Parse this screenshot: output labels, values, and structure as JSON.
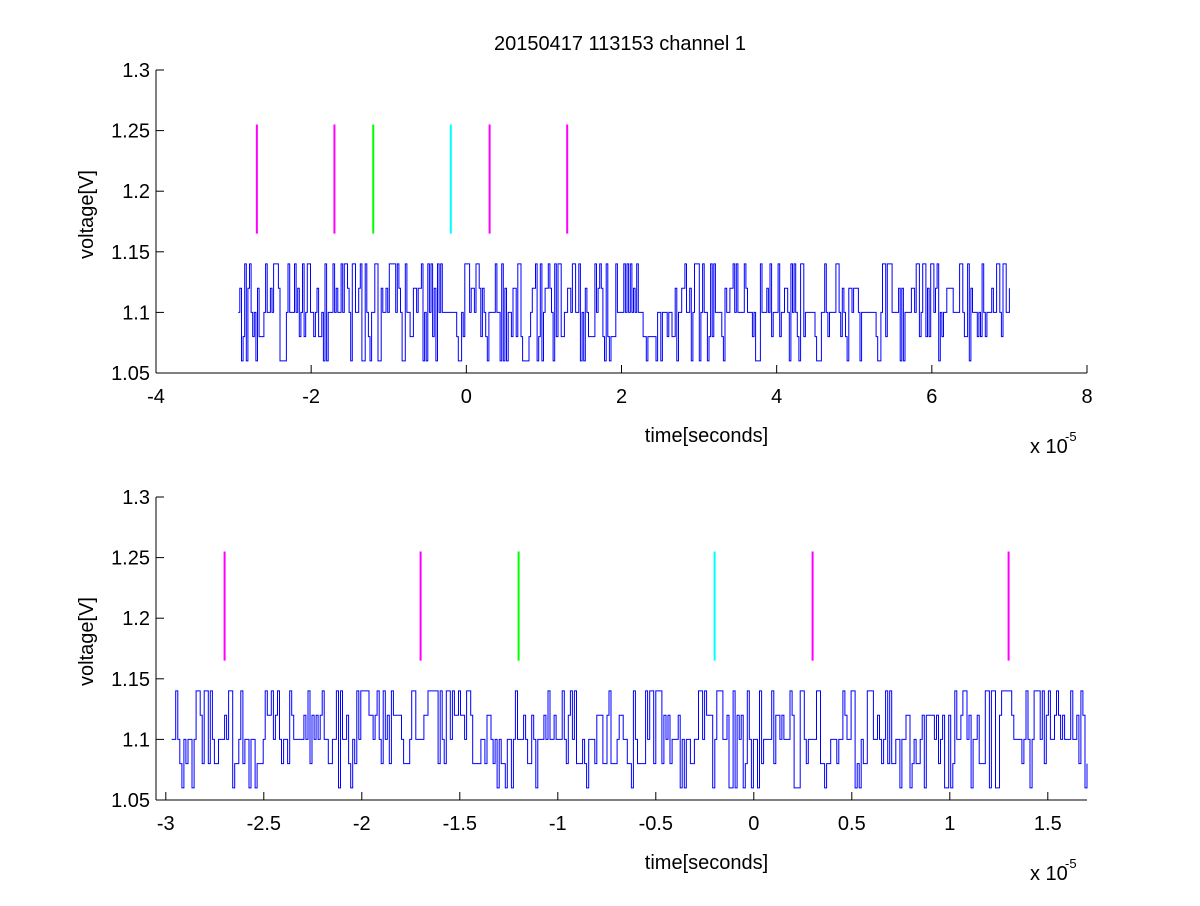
{
  "figure": {
    "title": "20150417 113153 channel 1",
    "colors": {
      "trace": "#0000ff",
      "magenta": "#ff00ff",
      "green": "#00ff00",
      "cyan": "#00ffff",
      "axis": "#000000",
      "background": "#ffffff"
    }
  },
  "chart_data": [
    {
      "type": "line",
      "title": "20150417 113153 channel 1",
      "xlabel": "time[seconds]",
      "ylabel": "voltage[V]",
      "x_multiplier_label": "x 10",
      "x_multiplier_exponent": "-5",
      "xlim": [
        -4,
        8
      ],
      "ylim": [
        1.05,
        1.3
      ],
      "xticks": [
        -4,
        -2,
        0,
        2,
        4,
        6,
        8
      ],
      "xtick_labels": [
        "-4",
        "-2",
        "0",
        "2",
        "4",
        "6",
        "8"
      ],
      "yticks": [
        1.05,
        1.1,
        1.15,
        1.2,
        1.25,
        1.3
      ],
      "ytick_labels": [
        "1.05",
        "1.1",
        "1.15",
        "1.2",
        "1.25",
        "1.3"
      ],
      "grid": false,
      "series": [
        {
          "style": "staircase",
          "color": "#0000ff",
          "x_start": -2.94,
          "x_end": 7.0,
          "levels": [
            1.06,
            1.08,
            1.1,
            1.12,
            1.14
          ],
          "baseline": 1.1,
          "samples": 480,
          "seed": 3
        }
      ],
      "markers": [
        {
          "x": -2.7,
          "y0": 1.165,
          "y1": 1.255,
          "color": "#ff00ff"
        },
        {
          "x": -1.7,
          "y0": 1.165,
          "y1": 1.255,
          "color": "#ff00ff"
        },
        {
          "x": -1.2,
          "y0": 1.165,
          "y1": 1.255,
          "color": "#00ff00"
        },
        {
          "x": -0.2,
          "y0": 1.165,
          "y1": 1.255,
          "color": "#00ffff"
        },
        {
          "x": 0.3,
          "y0": 1.165,
          "y1": 1.255,
          "color": "#ff00ff"
        },
        {
          "x": 1.3,
          "y0": 1.165,
          "y1": 1.255,
          "color": "#ff00ff"
        }
      ]
    },
    {
      "type": "line",
      "title": "",
      "xlabel": "time[seconds]",
      "ylabel": "voltage[V]",
      "x_multiplier_label": "x 10",
      "x_multiplier_exponent": "-5",
      "xlim": [
        -3.05,
        1.7
      ],
      "ylim": [
        1.05,
        1.3
      ],
      "xticks": [
        -3,
        -2.5,
        -2,
        -1.5,
        -1,
        -0.5,
        0,
        0.5,
        1,
        1.5
      ],
      "xtick_labels": [
        "-3",
        "-2.5",
        "-2",
        "-1.5",
        "-1",
        "-0.5",
        "0",
        "0.5",
        "1",
        "1.5"
      ],
      "yticks": [
        1.05,
        1.1,
        1.15,
        1.2,
        1.25,
        1.3
      ],
      "ytick_labels": [
        "1.05",
        "1.1",
        "1.15",
        "1.2",
        "1.25",
        "1.3"
      ],
      "grid": false,
      "series": [
        {
          "style": "staircase",
          "color": "#0000ff",
          "x_start": -2.97,
          "x_end": 1.7,
          "levels": [
            1.06,
            1.08,
            1.1,
            1.12,
            1.14
          ],
          "baseline": 1.1,
          "samples": 450,
          "seed": 11
        }
      ],
      "markers": [
        {
          "x": -2.7,
          "y0": 1.165,
          "y1": 1.255,
          "color": "#ff00ff"
        },
        {
          "x": -1.7,
          "y0": 1.165,
          "y1": 1.255,
          "color": "#ff00ff"
        },
        {
          "x": -1.2,
          "y0": 1.165,
          "y1": 1.255,
          "color": "#00ff00"
        },
        {
          "x": -0.2,
          "y0": 1.165,
          "y1": 1.255,
          "color": "#00ffff"
        },
        {
          "x": 0.3,
          "y0": 1.165,
          "y1": 1.255,
          "color": "#ff00ff"
        },
        {
          "x": 1.3,
          "y0": 1.165,
          "y1": 1.255,
          "color": "#ff00ff"
        }
      ]
    }
  ]
}
